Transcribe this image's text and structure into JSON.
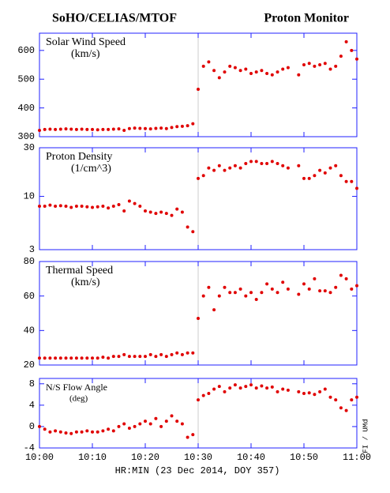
{
  "header": {
    "left": "SoHO/CELIAS/MTOF",
    "right": "Proton Monitor"
  },
  "credit": "FI / UMd",
  "xaxis": {
    "label": "HR:MIN (23 Dec 2014, DOY 357)",
    "xlim": [
      0,
      60
    ],
    "xticks": [
      {
        "value": 0,
        "label": "10:00"
      },
      {
        "value": 10,
        "label": "10:10"
      },
      {
        "value": 20,
        "label": "10:20"
      },
      {
        "value": 30,
        "label": "10:30"
      },
      {
        "value": 40,
        "label": "10:40"
      },
      {
        "value": 50,
        "label": "10:50"
      },
      {
        "value": 60,
        "label": "11:00"
      }
    ],
    "x": [
      0,
      1,
      2,
      3,
      4,
      5,
      6,
      7,
      8,
      9,
      10,
      11,
      12,
      13,
      14,
      15,
      16,
      17,
      18,
      19,
      20,
      21,
      22,
      23,
      24,
      25,
      26,
      27,
      28,
      29,
      30,
      31,
      32,
      33,
      34,
      35,
      36,
      37,
      38,
      39,
      40,
      41,
      42,
      43,
      44,
      45,
      46,
      47,
      48,
      49,
      50,
      51,
      52,
      53,
      54,
      55,
      56,
      57,
      58,
      59,
      60
    ]
  },
  "chart_data": [
    {
      "type": "scatter",
      "title": "Solar Wind Speed",
      "unit": "(km/s)",
      "color": "#e00000",
      "log": false,
      "ylim": [
        300,
        660
      ],
      "yticks": [
        300,
        400,
        500,
        600
      ],
      "values": [
        322,
        325,
        326,
        325,
        326,
        327,
        326,
        325,
        326,
        325,
        325,
        324,
        325,
        325,
        326,
        327,
        322,
        328,
        330,
        329,
        328,
        327,
        329,
        330,
        328,
        332,
        335,
        336,
        338,
        345,
        465,
        545,
        560,
        530,
        505,
        525,
        545,
        540,
        530,
        535,
        520,
        525,
        530,
        520,
        515,
        525,
        535,
        540,
        null,
        515,
        550,
        555,
        545,
        550,
        555,
        535,
        545,
        580,
        630,
        600,
        570
      ]
    },
    {
      "type": "scatter",
      "title": "Proton Density",
      "unit": "(1/cm^3)",
      "color": "#e00000",
      "log": true,
      "ylim": [
        3,
        30
      ],
      "yticks": [
        3,
        10,
        30
      ],
      "values": [
        8,
        8,
        8.2,
        8,
        8.1,
        8,
        7.8,
        8,
        8,
        7.9,
        7.8,
        7.9,
        8,
        7.7,
        8,
        8.3,
        7.2,
        9,
        8.5,
        8,
        7.2,
        7,
        6.8,
        7,
        6.8,
        6.5,
        7.5,
        7,
        5,
        4.5,
        15,
        16,
        19,
        18,
        20,
        18,
        19,
        20,
        19,
        21,
        22,
        22,
        21,
        21,
        22,
        21,
        20,
        19,
        null,
        20,
        15,
        15,
        16,
        18,
        17,
        19,
        20,
        16,
        14,
        14,
        12
      ]
    },
    {
      "type": "scatter",
      "title": "Thermal Speed",
      "unit": "(km/s)",
      "color": "#e00000",
      "log": false,
      "ylim": [
        20,
        80
      ],
      "yticks": [
        20,
        40,
        60,
        80
      ],
      "values": [
        24,
        24,
        24,
        24,
        24,
        24,
        24,
        24,
        24,
        24,
        24,
        24,
        24.5,
        24,
        25,
        25,
        26,
        25,
        25,
        25,
        25,
        26,
        25,
        26,
        25,
        26,
        27,
        26,
        27,
        27,
        47,
        60,
        65,
        52,
        60,
        65,
        62,
        62,
        64,
        60,
        62,
        58,
        62,
        67,
        64,
        62,
        68,
        64,
        null,
        61,
        67,
        64,
        70,
        63,
        63,
        62,
        65,
        72,
        70,
        64,
        66
      ]
    },
    {
      "type": "scatter",
      "title": "N/S Flow Angle",
      "unit": "(deg)",
      "color": "#e00000",
      "log": false,
      "ylim": [
        -4,
        9
      ],
      "yticks": [
        -4,
        0,
        4,
        8
      ],
      "values": [
        0,
        -0.5,
        -1,
        -0.8,
        -1,
        -1.2,
        -1.3,
        -1,
        -1,
        -0.8,
        -1,
        -1,
        -0.8,
        -0.5,
        -0.8,
        0,
        0.5,
        -0.3,
        0,
        0.5,
        1,
        0.5,
        1.5,
        0,
        1,
        2,
        1,
        0.5,
        -2,
        -1.5,
        5,
        5.8,
        6.2,
        7,
        7.5,
        6.5,
        7.2,
        7.8,
        7.2,
        7.5,
        7.8,
        7.2,
        7.6,
        7.2,
        7.4,
        6.5,
        7,
        6.8,
        null,
        6.5,
        6.2,
        6.3,
        6,
        6.5,
        7,
        5.5,
        5,
        3.5,
        3,
        5,
        5.5
      ]
    }
  ]
}
